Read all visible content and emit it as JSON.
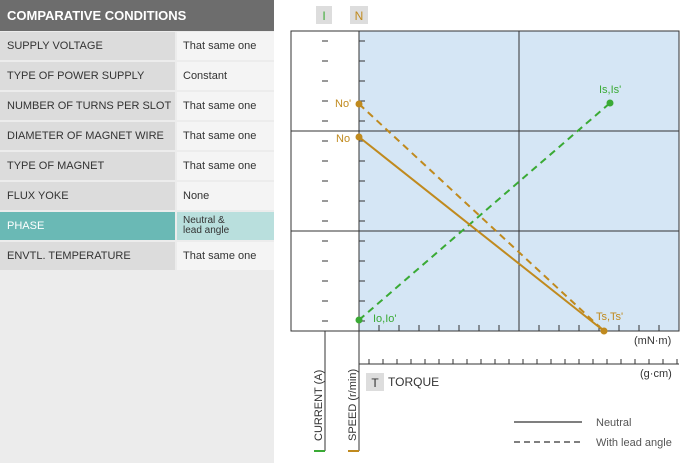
{
  "panel": {
    "title": "COMPARATIVE CONDITIONS",
    "rows": [
      {
        "label": "SUPPLY VOLTAGE",
        "value": "That same one"
      },
      {
        "label": "TYPE OF POWER SUPPLY",
        "value": "Constant"
      },
      {
        "label": "NUMBER OF TURNS PER SLOT",
        "value": "That same one"
      },
      {
        "label": "DIAMETER OF MAGNET WIRE",
        "value": "That same one"
      },
      {
        "label": "TYPE OF MAGNET",
        "value": "That same one"
      },
      {
        "label": "FLUX YOKE",
        "value": "None"
      },
      {
        "label": "PHASE",
        "value": "Neutral &\nlead angle"
      },
      {
        "label": "ENVTL. TEMPERATURE",
        "value": "That same one"
      }
    ]
  },
  "chart": {
    "axis_badges": {
      "current": "I",
      "speed": "N",
      "torque": "T"
    },
    "axis_labels": {
      "current": "CURRENT (A)",
      "speed": "SPEED (r/min)",
      "torque": "TORQUE"
    },
    "units": {
      "torque_si": "(mN·m)",
      "torque_cgs": "(g·cm)"
    },
    "point_labels": {
      "no_prime": "No'",
      "no": "No",
      "is": "Is,Is'",
      "io": "Io,Io'",
      "ts": "Ts,Ts'"
    },
    "legend": {
      "neutral": "Neutral",
      "lead": "With lead angle"
    },
    "colors": {
      "current_line": "#3aaa35",
      "speed_line": "#c08a1e",
      "plot_bg": "#d5e6f5",
      "badge_bg": "#dddddd"
    }
  }
}
